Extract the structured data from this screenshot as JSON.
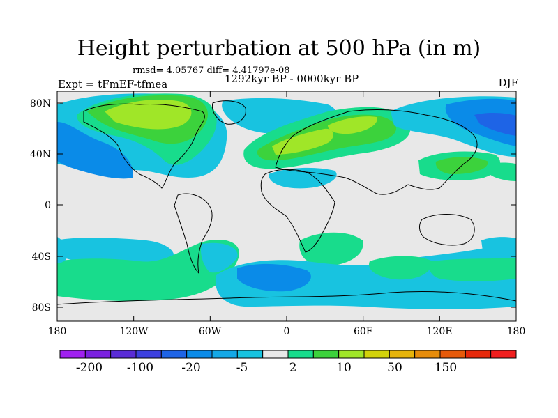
{
  "title": "Height perturbation at 500 hPa (in m)",
  "stats": "rmsd= 4.05767 diff= 4.41797e-08",
  "period": "1292kyr BP - 0000kyr BP",
  "experiment": "Expt = tFmEF-tfmea",
  "season": "DJF",
  "lat_ticks": [
    "80N",
    "40N",
    "0",
    "40S",
    "80S"
  ],
  "lon_ticks": [
    "180",
    "120W",
    "60W",
    "0",
    "60E",
    "120E",
    "180"
  ],
  "colorbar": {
    "colors": [
      "#a020f0",
      "#7a20e0",
      "#5a2cd6",
      "#3c40e0",
      "#1e64e6",
      "#0a8be8",
      "#14a8e6",
      "#18c3e0",
      "#e8e8e8",
      "#18dc8c",
      "#3cd23c",
      "#a0e628",
      "#d2d20a",
      "#e6b40a",
      "#e68c0a",
      "#e65a0a",
      "#e6280a",
      "#f01e1e"
    ],
    "labels": [
      "-200",
      "-100",
      "-20",
      "-5",
      "2",
      "10",
      "50",
      "150"
    ]
  },
  "fill_colors": {
    "neutral": "#e8e8e8",
    "lightblue": "#18c3e0",
    "midblue": "#0a8be8",
    "blue": "#1e64e6",
    "teal": "#18dc8c",
    "green": "#3cd23c",
    "yellowgreen": "#a0e628"
  }
}
